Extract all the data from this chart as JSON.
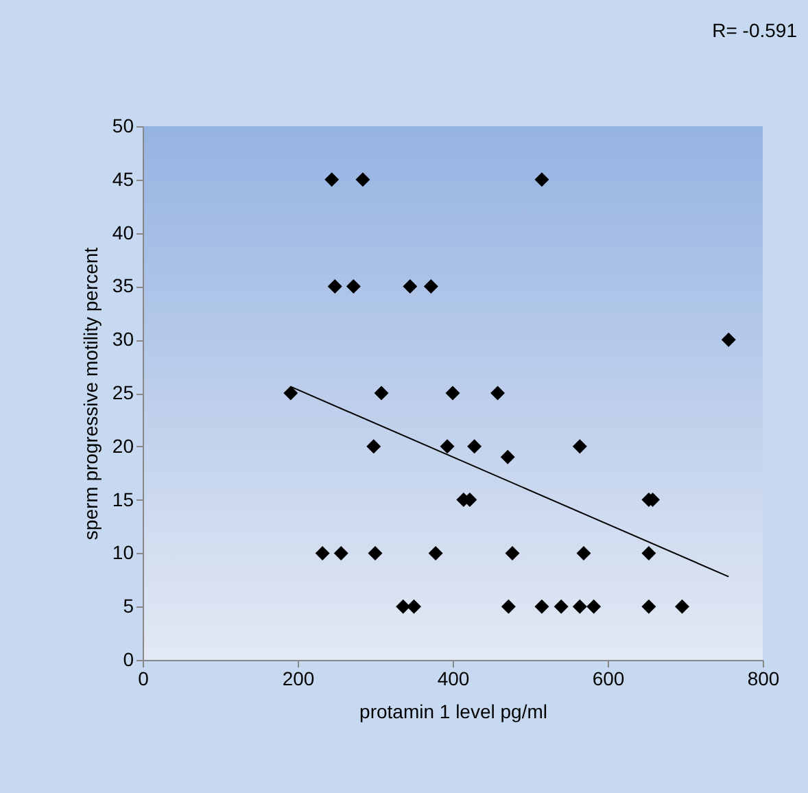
{
  "chart_data": {
    "type": "scatter",
    "xlabel": "protamin 1  level pg/ml",
    "ylabel": "sperm progressive motility percent",
    "annotations": [
      "R= -0.591"
    ],
    "xlim": [
      0,
      800
    ],
    "xticks": [
      0,
      200,
      400,
      600,
      800
    ],
    "ylim": [
      0,
      50
    ],
    "yticks": [
      0,
      5,
      10,
      15,
      20,
      25,
      30,
      35,
      40,
      45,
      50
    ],
    "grid": false,
    "series": [
      {
        "marker": "diamond",
        "color": "#000000",
        "x": [
          244,
          284,
          248,
          272,
          345,
          372,
          191,
          308,
          400,
          298,
          393,
          414,
          232,
          256,
          300,
          378,
          336,
          350,
          515,
          756,
          458,
          428,
          564,
          471,
          422,
          653,
          658,
          477,
          569,
          653,
          472,
          515,
          540,
          564,
          582,
          653,
          696
        ],
        "values": [
          45,
          45,
          35,
          35,
          35,
          35,
          25,
          25,
          25,
          20,
          20,
          15,
          10,
          10,
          10,
          10,
          5,
          5,
          45,
          30,
          25,
          20,
          20,
          19,
          15,
          15,
          15,
          10,
          10,
          10,
          5,
          5,
          5,
          5,
          5,
          5,
          5
        ]
      },
      {
        "type": "line",
        "color": "#000000",
        "x": [
          191,
          756
        ],
        "values": [
          25.6,
          7.8
        ]
      }
    ]
  }
}
